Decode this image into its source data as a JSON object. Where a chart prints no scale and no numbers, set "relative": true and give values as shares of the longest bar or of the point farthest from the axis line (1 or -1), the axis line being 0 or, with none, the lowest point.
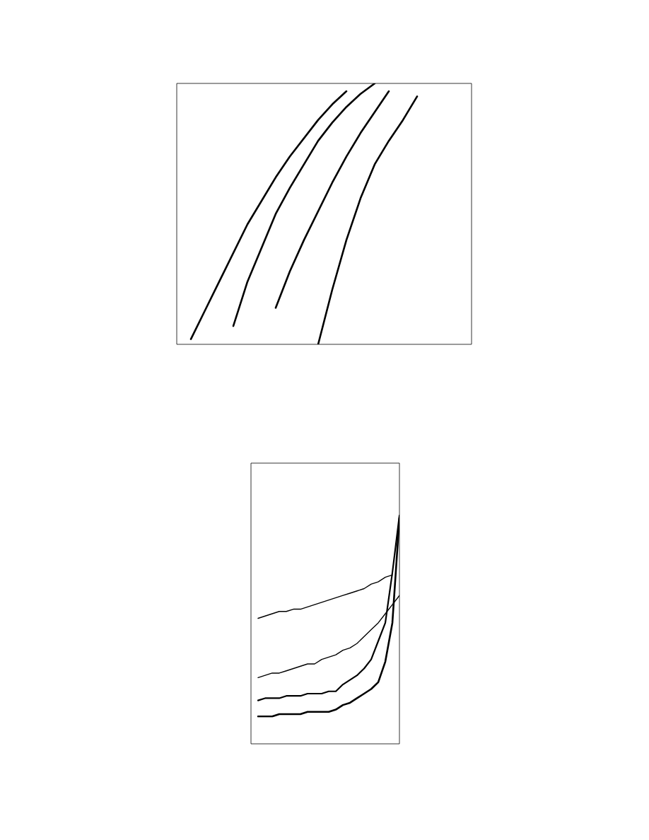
{
  "chart_data": [
    {
      "type": "line",
      "relative": true,
      "categories": [
        null,
        null,
        null,
        null,
        null,
        null,
        null,
        null,
        null,
        null,
        null,
        null,
        null,
        null,
        null,
        null,
        null,
        null,
        null,
        null,
        null
      ],
      "series": [
        {
          "color": "#000000",
          "values": [
            null,
            0.02,
            0.13,
            0.24,
            0.35,
            0.46,
            0.55,
            0.64,
            0.72,
            0.79,
            0.86,
            0.92,
            0.97,
            null,
            null,
            null,
            null,
            null,
            null,
            null,
            null
          ]
        },
        {
          "color": "#000000",
          "values": [
            null,
            null,
            null,
            null,
            0.07,
            0.24,
            0.37,
            0.5,
            0.6,
            0.69,
            0.78,
            0.85,
            0.91,
            0.96,
            1.0,
            null,
            null,
            null,
            null,
            null,
            null
          ]
        },
        {
          "color": "#000000",
          "values": [
            null,
            null,
            null,
            null,
            null,
            null,
            null,
            0.14,
            0.28,
            0.4,
            0.51,
            0.62,
            0.72,
            0.81,
            0.89,
            0.97,
            null,
            null,
            null,
            null,
            null
          ]
        },
        {
          "color": "#000000",
          "values": [
            null,
            null,
            null,
            null,
            null,
            null,
            null,
            null,
            null,
            null,
            0.0,
            0.21,
            0.4,
            0.56,
            0.69,
            0.78,
            0.86,
            0.95,
            null,
            null,
            null
          ]
        }
      ]
    },
    {
      "type": "line",
      "relative": true,
      "categories": [
        null,
        null,
        null,
        null,
        null,
        null,
        null,
        null,
        null,
        null,
        null,
        null,
        null,
        null,
        null,
        null,
        null,
        null,
        null,
        null,
        null
      ],
      "series": [
        {
          "color": "#000000",
          "values": [
            0.55,
            0.56,
            0.57,
            0.58,
            0.58,
            0.59,
            0.59,
            0.6,
            0.61,
            0.62,
            0.63,
            0.64,
            0.65,
            0.66,
            0.67,
            0.68,
            0.7,
            0.71,
            0.73,
            0.74,
            null
          ]
        },
        {
          "color": "#000000",
          "values": [
            0.29,
            0.3,
            0.31,
            0.31,
            0.32,
            0.33,
            0.34,
            0.35,
            0.35,
            0.37,
            0.38,
            0.39,
            0.41,
            0.42,
            0.44,
            0.47,
            0.5,
            0.53,
            0.57,
            0.61,
            0.65
          ]
        },
        {
          "color": "#000000",
          "values": [
            0.19,
            0.2,
            0.2,
            0.2,
            0.21,
            0.21,
            0.21,
            0.22,
            0.22,
            0.22,
            0.23,
            0.23,
            0.26,
            0.28,
            0.3,
            0.33,
            0.37,
            0.45,
            0.53,
            0.75,
            1.0
          ]
        },
        {
          "color": "#000000",
          "values": [
            0.12,
            0.12,
            0.12,
            0.13,
            0.13,
            0.13,
            0.13,
            0.14,
            0.14,
            0.14,
            0.14,
            0.15,
            0.17,
            0.18,
            0.2,
            0.22,
            0.24,
            0.27,
            0.36,
            0.53,
            0.99
          ]
        }
      ]
    }
  ]
}
